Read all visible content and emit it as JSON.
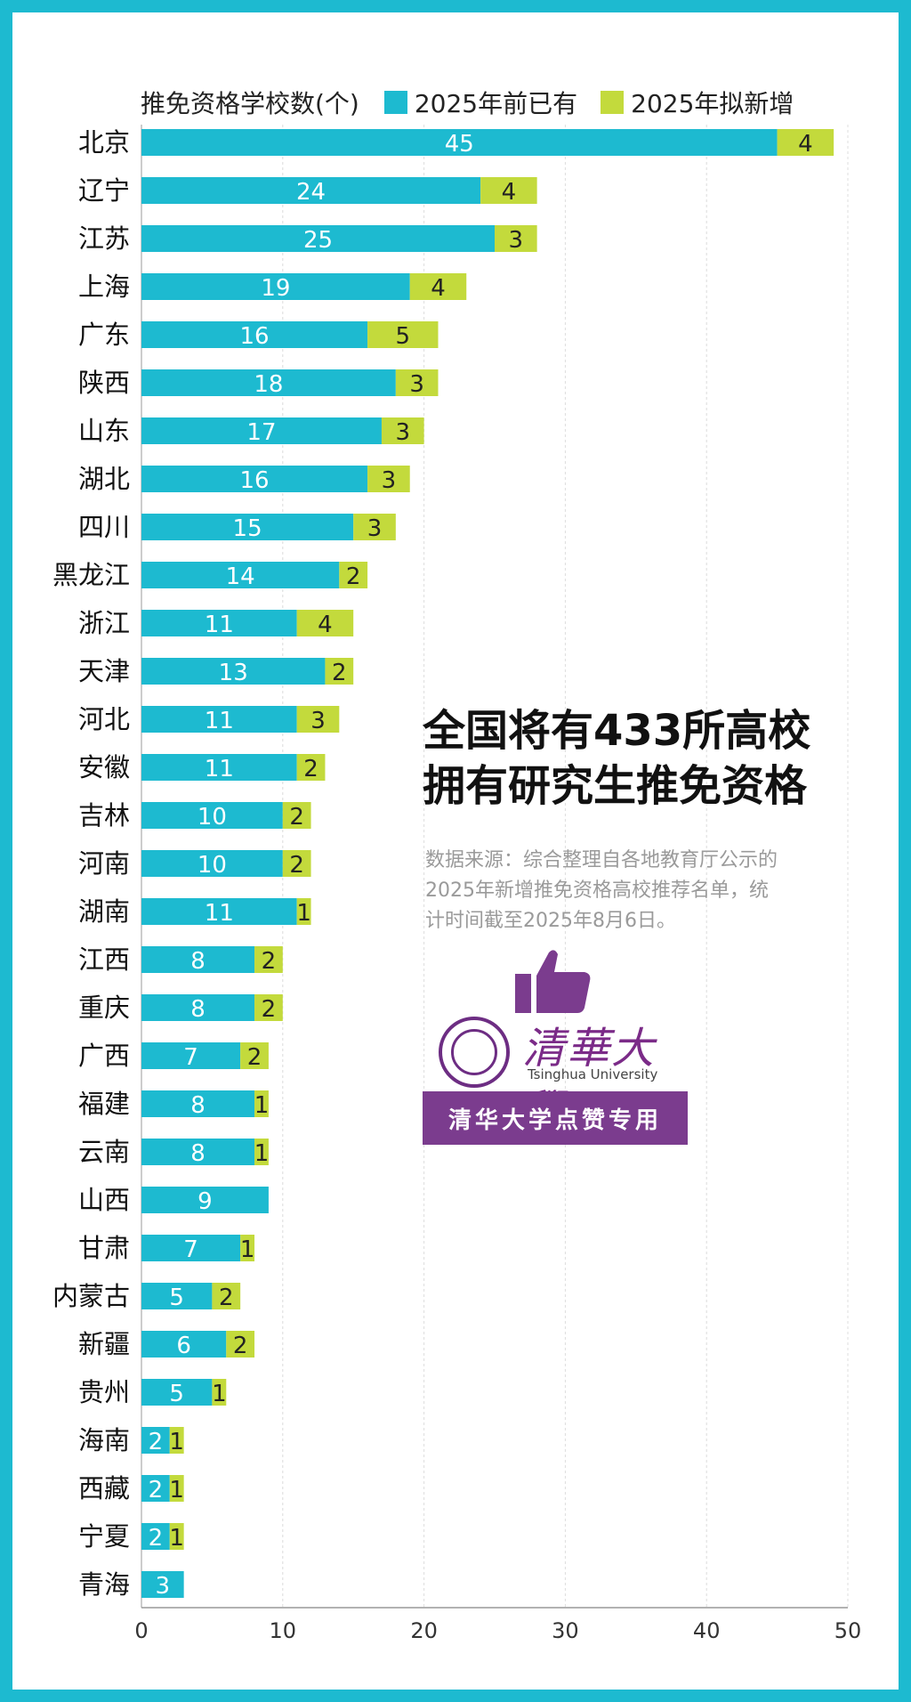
{
  "chart_data": {
    "type": "bar",
    "orientation": "horizontal",
    "stacked": true,
    "axis_title": "推免资格学校数(个)",
    "categories": [
      "北京",
      "辽宁",
      "江苏",
      "上海",
      "广东",
      "陕西",
      "山东",
      "湖北",
      "四川",
      "黑龙江",
      "浙江",
      "天津",
      "河北",
      "安徽",
      "吉林",
      "河南",
      "湖南",
      "江西",
      "重庆",
      "广西",
      "福建",
      "云南",
      "山西",
      "甘肃",
      "内蒙古",
      "新疆",
      "贵州",
      "海南",
      "西藏",
      "宁夏",
      "青海"
    ],
    "series": [
      {
        "name": "2025年前已有",
        "color": "#1dbad0",
        "values": [
          45,
          24,
          25,
          19,
          16,
          18,
          17,
          16,
          15,
          14,
          11,
          13,
          11,
          11,
          10,
          10,
          11,
          8,
          8,
          7,
          8,
          8,
          9,
          7,
          5,
          6,
          5,
          2,
          2,
          2,
          3
        ]
      },
      {
        "name": "2025年拟新增",
        "color": "#c3da3c",
        "values": [
          4,
          4,
          3,
          4,
          5,
          3,
          3,
          3,
          3,
          2,
          4,
          2,
          3,
          2,
          2,
          2,
          1,
          2,
          2,
          2,
          1,
          1,
          0,
          1,
          2,
          2,
          1,
          1,
          1,
          1,
          0
        ]
      }
    ],
    "xlim": [
      0,
      50
    ],
    "xticks": [
      0,
      10,
      20,
      30,
      40,
      50
    ],
    "grid": true,
    "legend_position": "top"
  },
  "headline": {
    "line1": "全国将有433所高校",
    "line2": "拥有研究生推免资格"
  },
  "source": {
    "line1": "数据来源：综合整理自各地教育厅公示的",
    "line2": "2025年新增推免资格高校推荐名单，统",
    "line3": "计时间截至2025年8月6日。"
  },
  "logo": {
    "brand_cn": "清華大學",
    "brand_en": "Tsinghua University",
    "banner": "清华大学点赞专用",
    "icons": [
      "thumbs-up-icon",
      "university-seal-icon"
    ],
    "accent": "#7b3c8e"
  }
}
